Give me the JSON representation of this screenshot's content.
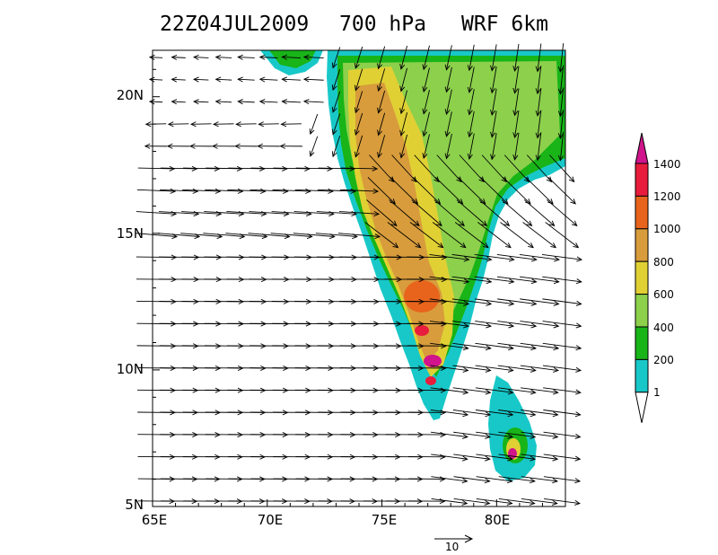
{
  "header": {
    "time": "22Z04JUL2009",
    "level": "700 hPa",
    "model": "WRF 6km"
  },
  "axes": {
    "lat_labels": [
      "20N",
      "15N",
      "10N",
      "5N"
    ],
    "lon_labels": [
      "65E",
      "70E",
      "75E",
      "80E"
    ],
    "lon_range": [
      65,
      83
    ],
    "lat_range": [
      5,
      21.7
    ]
  },
  "colorbar": {
    "levels": [
      "1400",
      "1200",
      "1000",
      "800",
      "600",
      "400",
      "200",
      "1"
    ],
    "colors": [
      "#d0148c",
      "#e81c3c",
      "#e8641c",
      "#d89c3c",
      "#e0d034",
      "#8cd04c",
      "#18b418",
      "#18c8c8"
    ]
  },
  "wind_reference": {
    "label": "10"
  },
  "colors": {
    "ocean": "#ffffff",
    "coast_lowland": "#18c8c8",
    "arrows": "#000000"
  }
}
